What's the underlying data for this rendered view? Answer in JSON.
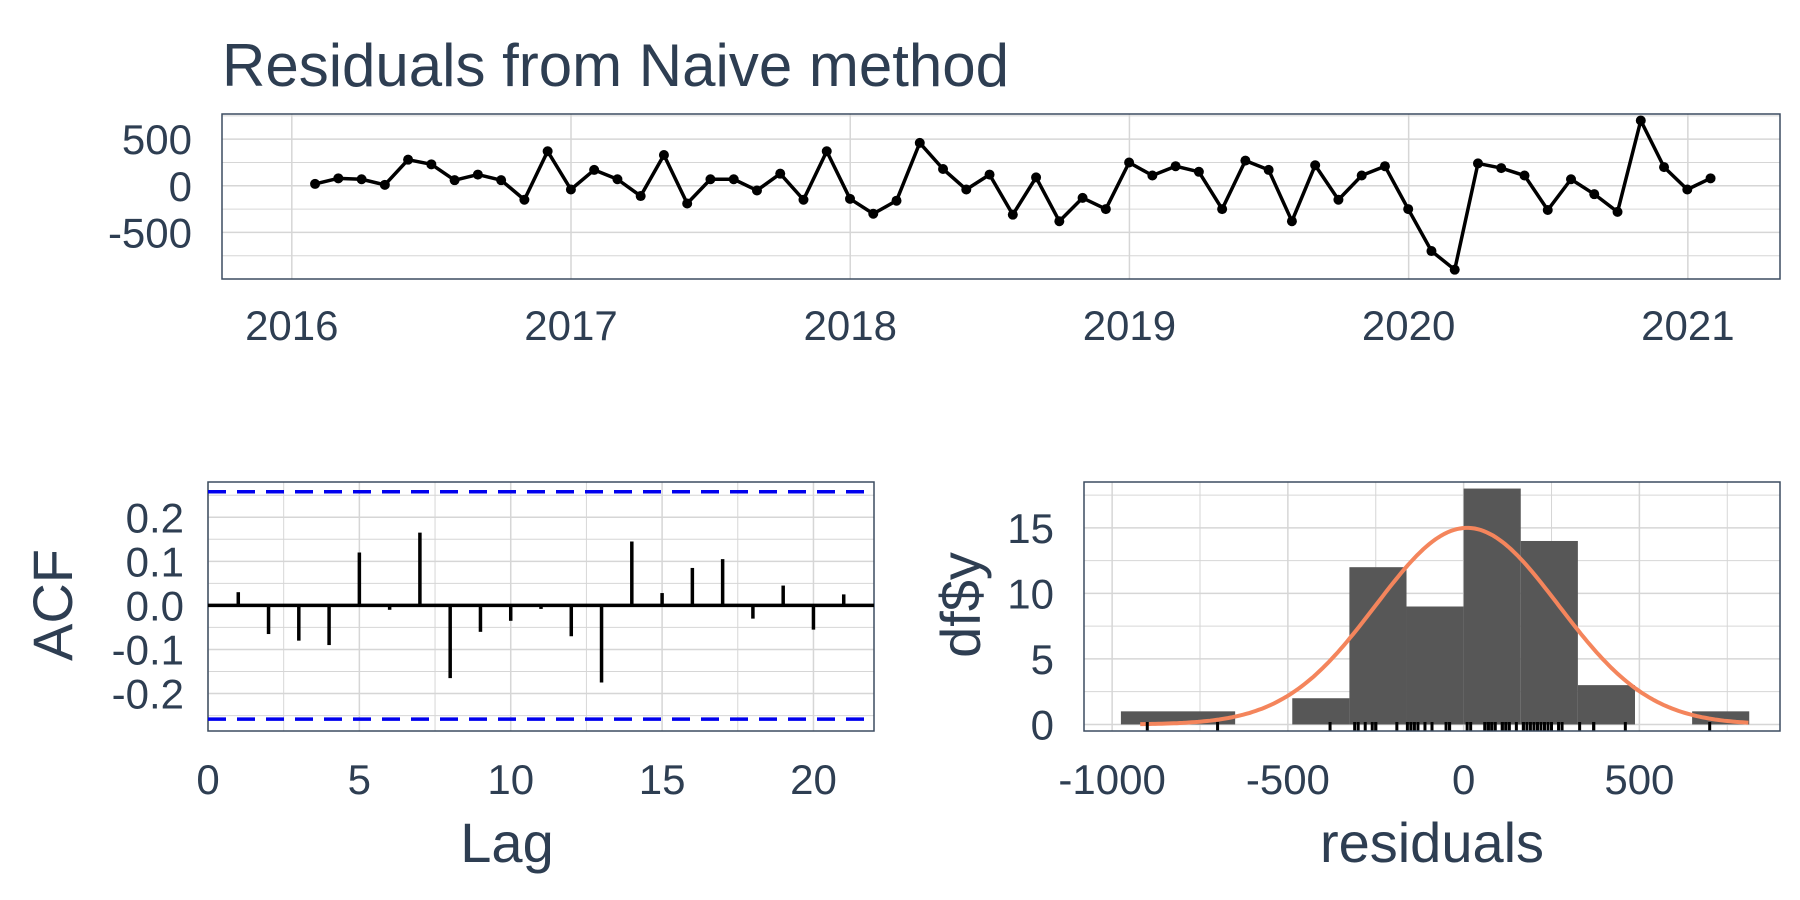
{
  "colors": {
    "text": "#2e3e52",
    "grid": "#d6d6d6",
    "panel_border": "#3c4c60",
    "line": "#000000",
    "conf_band": "#0000ee",
    "histogram": "#575757",
    "density": "#f4855c"
  },
  "chart_data": [
    {
      "type": "line",
      "title": "Residuals from Naive method",
      "xlabel": "",
      "ylabel": "",
      "x_ticks": [
        2016,
        2017,
        2018,
        2019,
        2020,
        2021
      ],
      "y_ticks": [
        -500,
        0,
        500
      ],
      "xlim": [
        2015.75,
        2021.33
      ],
      "ylim": [
        -1000,
        770
      ],
      "grid": true,
      "x_start": 2016.0833,
      "x_step": 0.0833,
      "values": [
        20,
        80,
        70,
        10,
        280,
        230,
        60,
        120,
        60,
        -150,
        370,
        -40,
        170,
        70,
        -110,
        330,
        -190,
        70,
        70,
        -50,
        130,
        -150,
        370,
        -140,
        -300,
        -160,
        460,
        180,
        -40,
        120,
        -310,
        90,
        -380,
        -130,
        -250,
        250,
        110,
        210,
        150,
        -250,
        270,
        170,
        -380,
        220,
        -150,
        110,
        210,
        -250,
        -700,
        -900,
        240,
        190,
        110,
        -260,
        70,
        -90,
        -280,
        700,
        200,
        -40,
        80
      ]
    },
    {
      "type": "bar",
      "subtype": "acf",
      "xlabel": "Lag",
      "ylabel": "ACF",
      "x_ticks": [
        0,
        5,
        10,
        15,
        20
      ],
      "y_tick_labels": [
        "0.2",
        "0.1",
        "0.0",
        "-0.1",
        "-0.2"
      ],
      "y_ticks": [
        0.2,
        0.1,
        0.0,
        -0.1,
        -0.2
      ],
      "xlim": [
        0,
        22
      ],
      "ylim": [
        -0.285,
        0.28
      ],
      "conf_limit": 0.258,
      "grid": true,
      "lags": [
        1,
        2,
        3,
        4,
        5,
        6,
        7,
        8,
        9,
        10,
        11,
        12,
        13,
        14,
        15,
        16,
        17,
        18,
        19,
        20,
        21
      ],
      "values": [
        0.03,
        -0.065,
        -0.08,
        -0.09,
        0.12,
        -0.01,
        0.165,
        -0.165,
        -0.06,
        -0.035,
        -0.008,
        -0.07,
        -0.175,
        0.145,
        0.028,
        0.085,
        0.105,
        -0.03,
        0.045,
        -0.055,
        0.025
      ]
    },
    {
      "type": "bar",
      "subtype": "histogram",
      "xlabel": "residuals",
      "ylabel": "df$y",
      "x_ticks": [
        -1000,
        -500,
        0,
        500
      ],
      "y_ticks": [
        0,
        5,
        10,
        15
      ],
      "xlim": [
        -1080,
        900
      ],
      "ylim": [
        -0.5,
        18.5
      ],
      "grid": true,
      "bins": [
        {
          "x0": -975,
          "x1": -650,
          "count": 1
        },
        {
          "x0": -650,
          "x1": -487.5,
          "count": 0
        },
        {
          "x0": -487.5,
          "x1": -325,
          "count": 2
        },
        {
          "x0": -325,
          "x1": -162.5,
          "count": 12
        },
        {
          "x0": -162.5,
          "x1": 0,
          "count": 9
        },
        {
          "x0": 0,
          "x1": 162.5,
          "count": 18
        },
        {
          "x0": 162.5,
          "x1": 325,
          "count": 14
        },
        {
          "x0": 325,
          "x1": 487.5,
          "count": 3
        },
        {
          "x0": 487.5,
          "x1": 650,
          "count": 0
        },
        {
          "x0": 650,
          "x1": 812.5,
          "count": 1
        }
      ],
      "density": {
        "mean": 10,
        "sd": 260,
        "peak": 15,
        "x_range": [
          -920,
          810
        ]
      },
      "rug": [
        -900,
        -700,
        -380,
        -310,
        -300,
        -280,
        -260,
        -250,
        -250,
        -190,
        -160,
        -150,
        -150,
        -140,
        -130,
        -110,
        -90,
        -50,
        -40,
        -40,
        10,
        20,
        60,
        70,
        70,
        70,
        70,
        80,
        80,
        90,
        110,
        110,
        120,
        120,
        130,
        150,
        170,
        170,
        180,
        190,
        200,
        210,
        210,
        220,
        230,
        240,
        250,
        270,
        280,
        330,
        370,
        370,
        460,
        700
      ]
    }
  ]
}
